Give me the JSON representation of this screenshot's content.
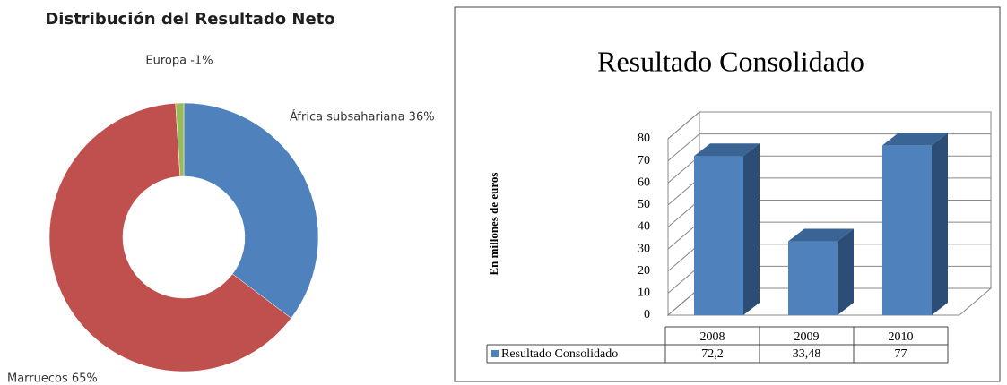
{
  "chart_data": [
    {
      "type": "donut",
      "title": "Distribución del Resultado Neto",
      "categories": [
        "África subsahariana",
        "Marruecos",
        "Europa"
      ],
      "values": [
        36,
        65,
        -1
      ],
      "value_labels": [
        "África subsahariana 36%",
        "Marruecos 65%",
        "Europa -1%"
      ],
      "colors": [
        "#4f81bd",
        "#c0504d",
        "#9bbb59"
      ]
    },
    {
      "type": "bar3d",
      "title": "Resultado Consolidado",
      "ylabel": "En millones de euros",
      "categories": [
        "2008",
        "2009",
        "2010"
      ],
      "series": [
        {
          "name": "Resultado Consolidado",
          "color": "#4f81bd",
          "values": [
            72.2,
            33.48,
            77
          ],
          "value_labels": [
            "72,2",
            "33,48",
            "77"
          ]
        }
      ],
      "ylim": [
        0,
        80
      ],
      "yticks": [
        0,
        10,
        20,
        30,
        40,
        50,
        60,
        70,
        80
      ],
      "grid": true
    }
  ]
}
